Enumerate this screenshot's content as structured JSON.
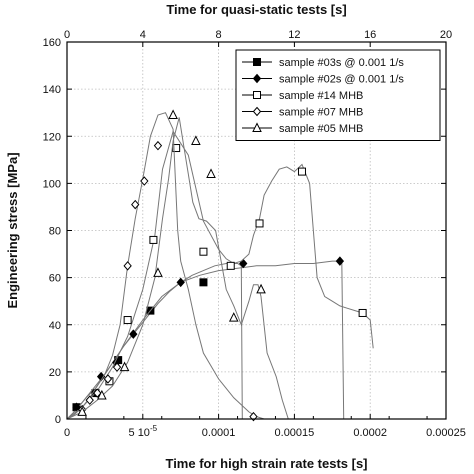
{
  "chart_data": {
    "type": "line",
    "title": "",
    "top_axis_label": "Time for quasi-static tests [s]",
    "xlabel": "Time for high strain rate tests [s]",
    "ylabel": "Engineering stress [MPa]",
    "xlim": [
      0,
      0.00025
    ],
    "x_ticks": [
      {
        "value": 0,
        "label": "0"
      },
      {
        "value": 5e-05,
        "label": "5 10",
        "exp": "-5"
      },
      {
        "value": 0.0001,
        "label": "0.0001"
      },
      {
        "value": 0.00015,
        "label": "0.00015"
      },
      {
        "value": 0.0002,
        "label": "0.0002"
      },
      {
        "value": 0.00025,
        "label": "0.00025"
      }
    ],
    "top_xlim": [
      0,
      20
    ],
    "top_ticks": [
      "0",
      "4",
      "8",
      "12",
      "16",
      "20"
    ],
    "ylim": [
      0,
      160
    ],
    "y_ticks": [
      "0",
      "20",
      "40",
      "60",
      "80",
      "100",
      "120",
      "140",
      "160"
    ],
    "grid": true,
    "legend_position": "top-right",
    "series": [
      {
        "name": "sample #03s @ 0.001 1/s",
        "axis": "top",
        "marker": "filled-square",
        "x": [
          0,
          0.5,
          1.0,
          1.5,
          2.0,
          2.5,
          3.0,
          3.6,
          4.2,
          4.8,
          5.4,
          6.0,
          6.6,
          7.2,
          7.8,
          8.4,
          9.0,
          9.2,
          9.25
        ],
        "y": [
          0,
          4,
          9,
          13,
          19,
          25,
          31,
          37,
          43,
          49,
          54,
          58,
          61,
          63,
          65,
          66,
          66,
          65,
          0
        ],
        "marker_x": [
          0.5,
          1.5,
          2.7,
          4.4,
          7.2
        ],
        "marker_y": [
          5,
          11,
          25,
          46,
          58
        ]
      },
      {
        "name": "sample #02s @ 0.001 1/s",
        "axis": "top",
        "marker": "filled-diamond",
        "x": [
          0,
          0.5,
          1.2,
          2.0,
          3.0,
          4.0,
          5.0,
          6.0,
          7.0,
          8.0,
          9.0,
          10.0,
          11.0,
          12.0,
          13.0,
          14.0,
          14.5,
          14.6
        ],
        "y": [
          0,
          4,
          11,
          19,
          31,
          42,
          52,
          58,
          61,
          63,
          64,
          65,
          65,
          66,
          66,
          67,
          67,
          0
        ],
        "marker_x": [
          0.5,
          1.8,
          2.6,
          3.5,
          6.0,
          9.3,
          14.4
        ],
        "marker_y": [
          5,
          18,
          24,
          36,
          58,
          66,
          67
        ]
      },
      {
        "name": "sample #14 MHB",
        "axis": "bottom",
        "marker": "open-square",
        "x": [
          0,
          1e-05,
          2e-05,
          3e-05,
          4e-05,
          5e-05,
          5.8e-05,
          6.3e-05,
          7e-05,
          8e-05,
          9e-05,
          0.0001,
          0.000105,
          0.00011,
          0.000115,
          0.00012,
          0.000123,
          0.000127,
          0.00013,
          0.000135,
          0.00014,
          0.000145,
          0.00015,
          0.000155,
          0.00016,
          0.000165,
          0.00017,
          0.000175,
          0.00018,
          0.000185,
          0.00019,
          0.000195,
          0.0002,
          0.000202
        ],
        "y": [
          0,
          5,
          12,
          22,
          35,
          55,
          78,
          106,
          122,
          112,
          84,
          72,
          68,
          66,
          67,
          70,
          78,
          85,
          95,
          101,
          106,
          107,
          105,
          108,
          100,
          60,
          52,
          50,
          48,
          47,
          46,
          45,
          42,
          30
        ],
        "marker_x": [
          2.8e-05,
          4e-05,
          5.7e-05,
          7.2e-05,
          9e-05,
          0.000108,
          0.000127,
          0.000155,
          0.000195
        ],
        "marker_y": [
          16,
          42,
          76,
          115,
          71,
          65,
          83,
          105,
          45
        ]
      },
      {
        "name": "sample #07 MHB",
        "axis": "bottom",
        "marker": "open-diamond",
        "x": [
          0,
          5e-06,
          1e-05,
          1.5e-05,
          2e-05,
          2.5e-05,
          3e-05,
          3.5e-05,
          4e-05,
          4.5e-05,
          5e-05,
          5.5e-05,
          6e-05,
          6.5e-05,
          7e-05,
          7.3e-05,
          7.5e-05,
          8e-05,
          8.5e-05,
          9e-05,
          0.0001,
          0.00011,
          0.00012,
          0.000125,
          0.00013
        ],
        "y": [
          0,
          2,
          5,
          9,
          14,
          19,
          27,
          40,
          65,
          85,
          102,
          120,
          129,
          130,
          123,
          80,
          67,
          55,
          40,
          28,
          17,
          9,
          3,
          1,
          0
        ],
        "marker_x": [
          1e-05,
          1.5e-05,
          2e-05,
          2.7e-05,
          3.3e-05,
          4e-05,
          4.5e-05,
          5.1e-05,
          6e-05,
          0.000123
        ],
        "marker_y": [
          4,
          8,
          11,
          17,
          22,
          65,
          91,
          101,
          116,
          1
        ]
      },
      {
        "name": "sample #05 MHB",
        "axis": "bottom",
        "marker": "open-triangle",
        "x": [
          0,
          1e-05,
          2e-05,
          3e-05,
          4e-05,
          5e-05,
          5.8e-05,
          6.3e-05,
          6.7e-05,
          7e-05,
          7.4e-05,
          7.7e-05,
          8e-05,
          8.3e-05,
          8.7e-05,
          9.2e-05,
          9.8e-05,
          0.000105,
          0.00011,
          0.000115,
          0.00012,
          0.000123,
          0.000126,
          0.000128,
          0.000132,
          0.000138,
          0.000142,
          0.000146
        ],
        "y": [
          0,
          3,
          8,
          14,
          24,
          40,
          60,
          85,
          102,
          118,
          128,
          116,
          104,
          92,
          85,
          84,
          80,
          55,
          48,
          40,
          50,
          57,
          57,
          52,
          28,
          18,
          8,
          0
        ],
        "marker_x": [
          1e-05,
          2.3e-05,
          3.8e-05,
          6e-05,
          7e-05,
          8.5e-05,
          9.5e-05,
          0.00011,
          0.000128
        ],
        "marker_y": [
          3,
          10,
          22,
          62,
          129,
          118,
          104,
          43,
          55
        ]
      }
    ]
  }
}
